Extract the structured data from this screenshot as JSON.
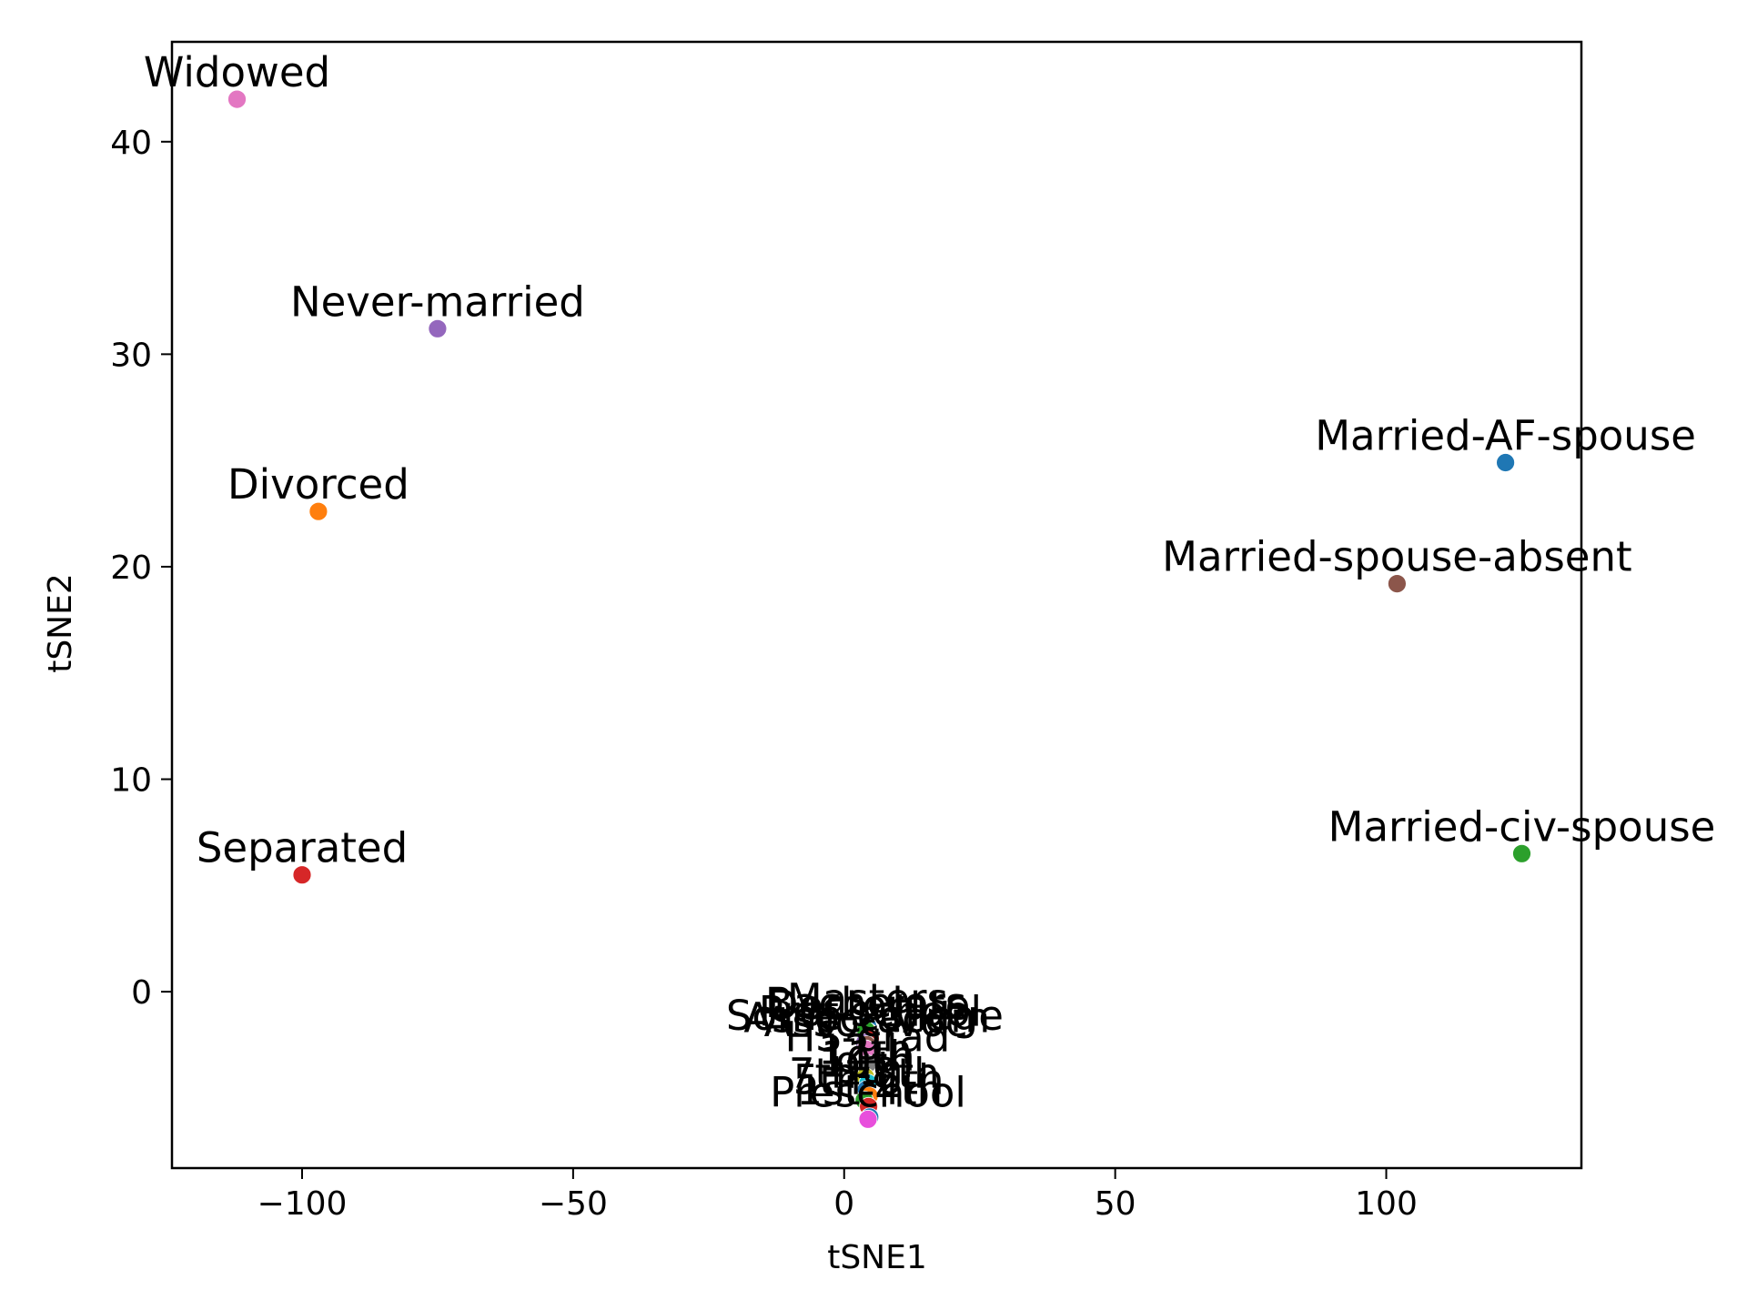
{
  "chart_data": {
    "type": "scatter",
    "title": "",
    "xlabel": "tSNE1",
    "ylabel": "tSNE2",
    "xlim": [
      -124,
      136
    ],
    "ylim": [
      -8.3,
      44.7
    ],
    "xticks": [
      -100,
      -50,
      0,
      50,
      100
    ],
    "xtick_labels": [
      "−100",
      "−50",
      "0",
      "50",
      "100"
    ],
    "yticks": [
      0,
      10,
      20,
      30,
      40
    ],
    "ytick_labels": [
      "0",
      "10",
      "20",
      "30",
      "40"
    ],
    "grid": false,
    "legend": "none",
    "points": [
      {
        "label": "Widowed",
        "x": -112,
        "y": 42.0,
        "color": "#e377c2"
      },
      {
        "label": "Never-married",
        "x": -75,
        "y": 31.2,
        "color": "#9467bd"
      },
      {
        "label": "Divorced",
        "x": -97,
        "y": 22.6,
        "color": "#ff7f0e"
      },
      {
        "label": "Separated",
        "x": -100,
        "y": 5.5,
        "color": "#d62728"
      },
      {
        "label": "Married-AF-spouse",
        "x": 122,
        "y": 24.9,
        "color": "#1f77b4"
      },
      {
        "label": "Married-spouse-absent",
        "x": 102,
        "y": 19.2,
        "color": "#8c564b"
      },
      {
        "label": "Married-civ-spouse",
        "x": 125,
        "y": 6.5,
        "color": "#2ca02c"
      },
      {
        "label": "Masters",
        "x": 4.3,
        "y": -1.6,
        "color": "#1f77b4"
      },
      {
        "label": "Doctorate",
        "x": 4.5,
        "y": -1.9,
        "color": "#ff7f0e"
      },
      {
        "label": "Bachelors",
        "x": 4.0,
        "y": -1.8,
        "color": "#2ca02c"
      },
      {
        "label": "Prof-school",
        "x": 4.8,
        "y": -2.2,
        "color": "#d62728"
      },
      {
        "label": "Some-college",
        "x": 3.8,
        "y": -2.4,
        "color": "#9467bd"
      },
      {
        "label": "Assoc-acdm",
        "x": 4.2,
        "y": -2.5,
        "color": "#8c564b"
      },
      {
        "label": "Assoc-voc",
        "x": 4.0,
        "y": -2.7,
        "color": "#e377c2"
      },
      {
        "label": "HS-grad",
        "x": 4.3,
        "y": -3.4,
        "color": "#7f7f7f"
      },
      {
        "label": "12th",
        "x": 3.9,
        "y": -4.0,
        "color": "#bcbd22"
      },
      {
        "label": "11th",
        "x": 4.4,
        "y": -4.3,
        "color": "#17becf"
      },
      {
        "label": "10th",
        "x": 4.1,
        "y": -4.6,
        "color": "#1f77b4"
      },
      {
        "label": "9th",
        "x": 4.6,
        "y": -4.9,
        "color": "#ff7f0e"
      },
      {
        "label": "7th-8th",
        "x": 3.7,
        "y": -5.1,
        "color": "#2ca02c"
      },
      {
        "label": "5th-6th",
        "x": 4.5,
        "y": -5.4,
        "color": "#d62728"
      },
      {
        "label": "1st-4th",
        "x": 4.7,
        "y": -5.9,
        "color": "#1f77b4"
      },
      {
        "label": "Preschool",
        "x": 4.4,
        "y": -6.0,
        "color": "#e84fdc"
      }
    ]
  }
}
